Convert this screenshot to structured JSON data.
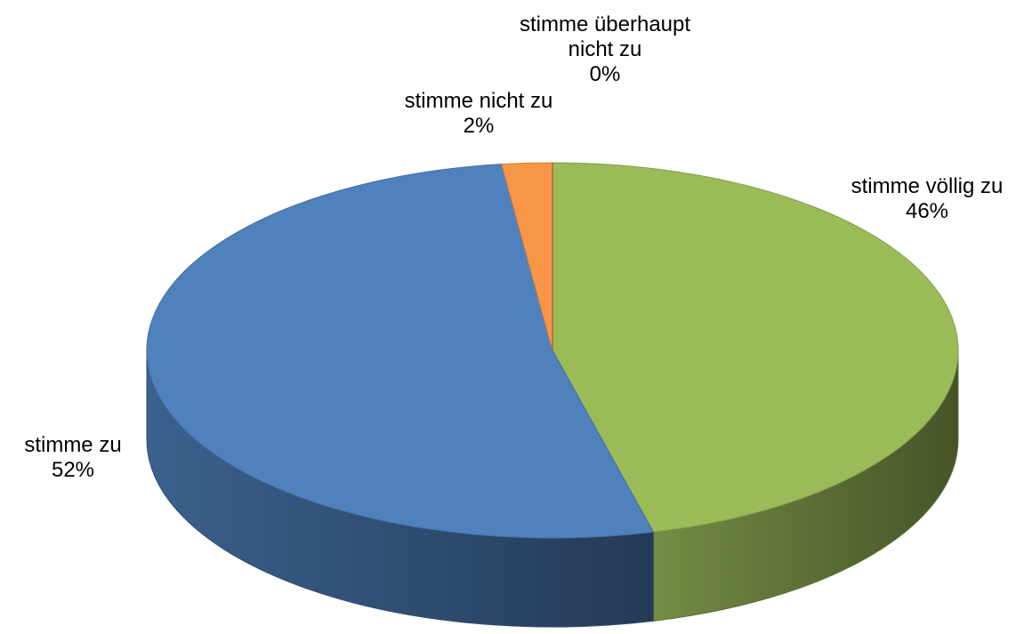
{
  "chart_data": {
    "type": "pie",
    "categories": [
      "stimme völlig zu",
      "stimme zu",
      "stimme nicht zu",
      "stimme überhaupt nicht zu"
    ],
    "values": [
      46,
      52,
      2,
      0
    ],
    "value_labels": [
      "46%",
      "52%",
      "2%",
      "0%"
    ],
    "colors": [
      "#9bbb59",
      "#4f81bd",
      "#f79646",
      "#c0504d"
    ]
  }
}
